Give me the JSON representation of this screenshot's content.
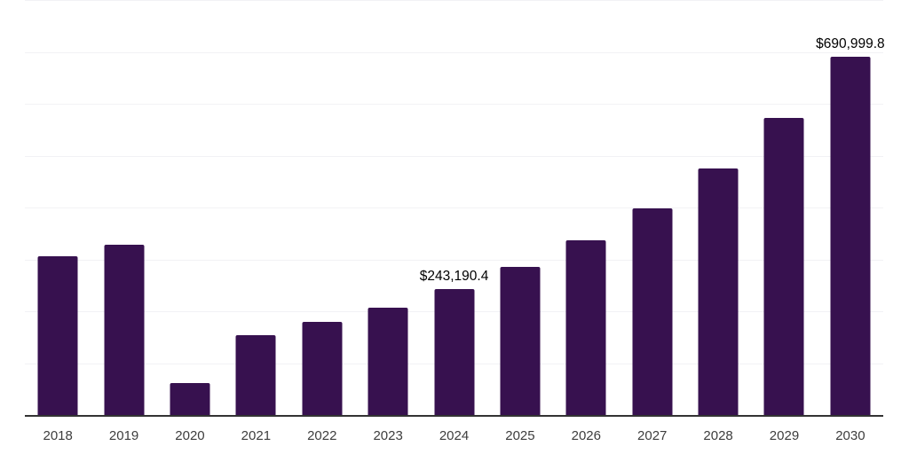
{
  "chart_data": {
    "type": "bar",
    "title": "",
    "xlabel": "",
    "ylabel": "",
    "categories": [
      "2018",
      "2019",
      "2020",
      "2021",
      "2022",
      "2023",
      "2024",
      "2025",
      "2026",
      "2027",
      "2028",
      "2029",
      "2030"
    ],
    "values": [
      306500,
      329000,
      62000,
      154000,
      179000,
      206500,
      243190.4,
      285000,
      336000,
      398000,
      475500,
      572500,
      690999.8
    ],
    "point_labels": [
      "",
      "",
      "",
      "",
      "",
      "",
      "$243,190.4",
      "",
      "",
      "",
      "",
      "",
      "$690,999.8"
    ],
    "ylim": [
      0,
      800000
    ],
    "gridline_interval": 100000,
    "grid": true,
    "legend": "none",
    "colors": {
      "bar": "#37114F",
      "axis": "#333333",
      "gridline": "#f2f2f5",
      "tick_label": "#3d3d3d",
      "data_label": "#000000",
      "background": "#ffffff"
    }
  }
}
